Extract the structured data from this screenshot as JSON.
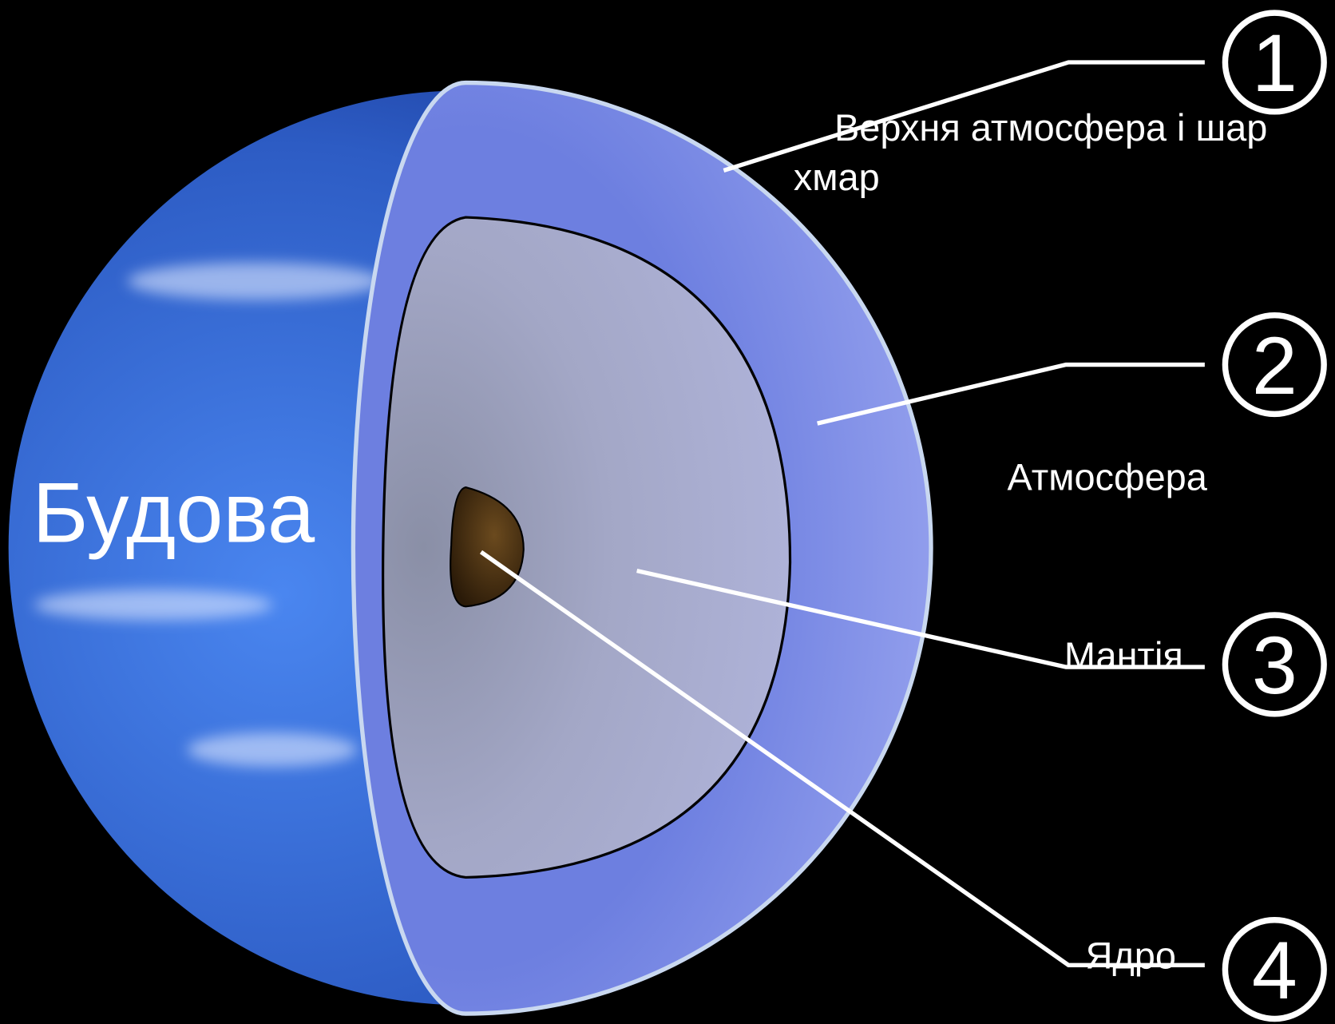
{
  "title": "Будова",
  "layers": [
    {
      "number": "1",
      "label": "Верхня атмосфера і шар хмар"
    },
    {
      "number": "2",
      "label": "Атмосфера"
    },
    {
      "number": "3",
      "label": "Мантія"
    },
    {
      "number": "4",
      "label": "Ядро"
    }
  ]
}
